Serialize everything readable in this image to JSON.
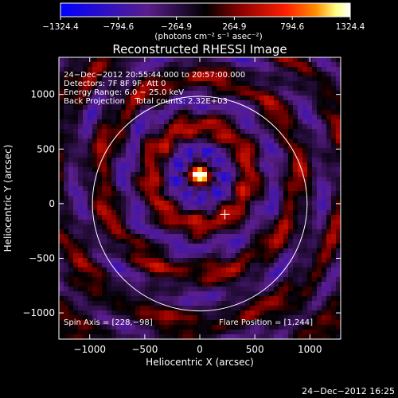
{
  "chart_data": {
    "type": "heatmap",
    "title": "Reconstructed RHESSI Image",
    "xlabel": "Heliocentric X (arcsec)",
    "ylabel": "Heliocentric Y (arcsec)",
    "xlim": [
      -1280,
      1280
    ],
    "ylim": [
      -1240,
      1340
    ],
    "x_ticks": [
      -1000,
      -500,
      0,
      500,
      1000
    ],
    "x_tick_labels": [
      "−1000",
      "−500",
      "0",
      "500",
      "1000"
    ],
    "y_ticks": [
      -1000,
      -500,
      0,
      500,
      1000
    ],
    "y_tick_labels": [
      "−1000",
      "−500",
      "0",
      "500",
      "1000"
    ],
    "colorbar": {
      "range": [
        -1324.4,
        1324.4
      ],
      "tick_values": [
        -1324.4,
        -794.6,
        -264.9,
        264.9,
        794.6,
        1324.4
      ],
      "tick_labels": [
        "−1324.4",
        "−794.6",
        "−264.9",
        "264.9",
        "794.6",
        "1324.4"
      ],
      "unit_label": "(photons cm⁻² s⁻¹ asec⁻²)",
      "colormap": [
        "#0000ff",
        "#5a1e8c",
        "#000000",
        "#8b0000",
        "#ff2000",
        "#ff8c00",
        "#ffff80",
        "#ffffff"
      ]
    },
    "annotations": [
      "24−Dec−2012 20:55:44.000 to 20:57:00.000",
      "Detectors: 7F 8F 9F, Att 0",
      "Energy Range: 6.0 − 25.0 keV",
      "Back Projection    Total counts: 2.32E+03"
    ],
    "spin_axis_label": "Spin Axis = [228,−98]",
    "flare_position_label": "Flare Position = [1,244]",
    "sun_limb_radius_arcsec": 975,
    "sun_center": [
      0,
      0
    ],
    "peak_position": [
      0,
      260
    ],
    "spin_axis": [
      228,
      -98
    ],
    "flare_position": [
      1,
      244
    ]
  },
  "footer": {
    "timestamp": "24−Dec−2012 16:25"
  }
}
